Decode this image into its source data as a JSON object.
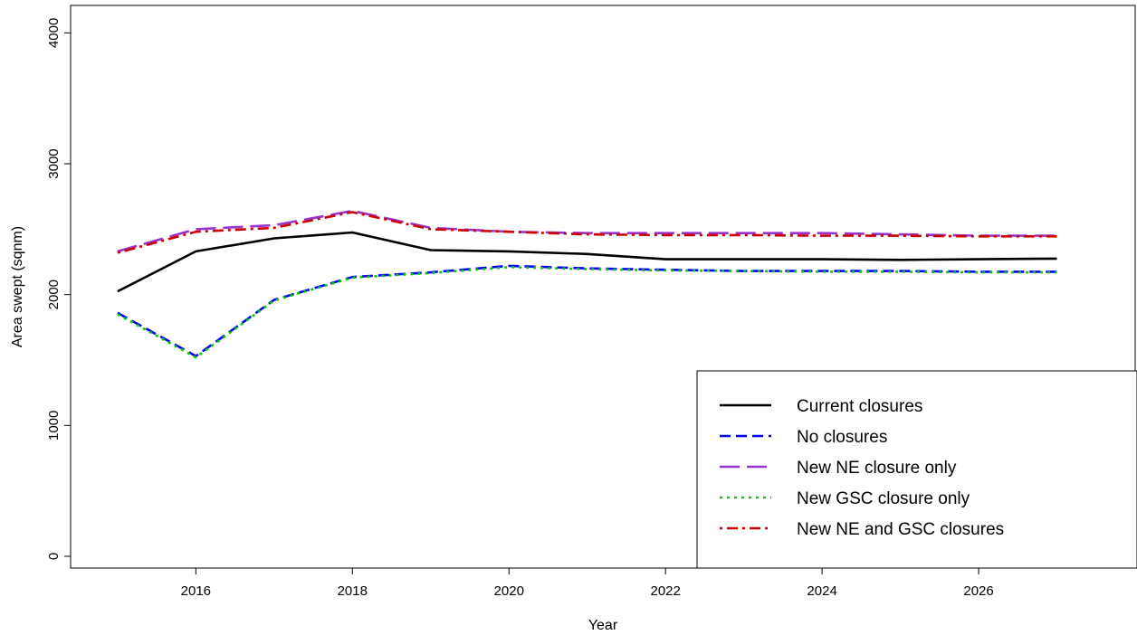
{
  "chart_data": {
    "type": "line",
    "title": "",
    "xlabel": "Year",
    "ylabel": "Area swept (sqnm)",
    "x": [
      2015,
      2016,
      2017,
      2018,
      2019,
      2020,
      2021,
      2022,
      2023,
      2024,
      2025,
      2026,
      2027
    ],
    "xlim": [
      2014.4,
      2028
    ],
    "ylim": [
      -90,
      4210
    ],
    "x_ticks": [
      "2016",
      "2018",
      "2020",
      "2022",
      "2024",
      "2026"
    ],
    "y_ticks": [
      "0",
      "1000",
      "2000",
      "3000",
      "4000"
    ],
    "grid": false,
    "legend_position": "bottom-right",
    "series": [
      {
        "name": "Current closures",
        "color": "#000000",
        "dash": "solid",
        "values": [
          2025,
          2330,
          2430,
          2475,
          2340,
          2330,
          2310,
          2270,
          2270,
          2270,
          2265,
          2270,
          2275
        ]
      },
      {
        "name": "No closures",
        "color": "#0000ff",
        "dash": "dashed",
        "values": [
          1860,
          1530,
          1960,
          2135,
          2170,
          2220,
          2200,
          2190,
          2180,
          2180,
          2180,
          2175,
          2175
        ]
      },
      {
        "name": "New NE closure only",
        "color": "#9a32cd",
        "dash": "longdash",
        "values": [
          2330,
          2500,
          2530,
          2640,
          2510,
          2480,
          2470,
          2470,
          2470,
          2470,
          2460,
          2450,
          2450
        ]
      },
      {
        "name": "New GSC closure only",
        "color": "#00cd00",
        "dash": "dotted",
        "values": [
          1850,
          1520,
          1955,
          2130,
          2165,
          2210,
          2195,
          2185,
          2180,
          2175,
          2175,
          2170,
          2170
        ]
      },
      {
        "name": "New NE and GSC closures",
        "color": "#cc0000",
        "dash": "dotdash",
        "values": [
          2320,
          2480,
          2510,
          2630,
          2500,
          2480,
          2460,
          2455,
          2455,
          2450,
          2450,
          2445,
          2445
        ]
      }
    ]
  }
}
